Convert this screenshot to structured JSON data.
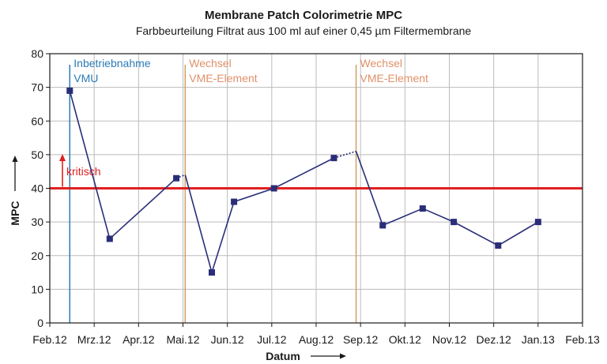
{
  "chart_data": {
    "type": "line",
    "title": "Membrane Patch Colorimetrie MPC",
    "subtitle": "Farbbeurteilung Filtrat aus 100 ml auf einer 0,45 µm Filtermembrane",
    "xlabel": "Datum",
    "ylabel": "MPC",
    "ylim": [
      0,
      80
    ],
    "yticks": [
      "0",
      "10",
      "20",
      "30",
      "40",
      "50",
      "60",
      "70",
      "80"
    ],
    "xticks": [
      "Feb.12",
      "Mrz.12",
      "Apr.12",
      "Mai.12",
      "Jun.12",
      "Jul.12",
      "Aug.12",
      "Sep.12",
      "Okt.12",
      "Nov.12",
      "Dez.12",
      "Jan.13",
      "Feb.13"
    ],
    "grid": true,
    "series": [
      {
        "values": [
          {
            "x": 0.45,
            "y": 69
          },
          {
            "x": 1.35,
            "y": 25
          },
          {
            "x": 2.85,
            "y": 43
          },
          {
            "x": 3.65,
            "y": 15
          },
          {
            "x": 4.15,
            "y": 36
          },
          {
            "x": 5.05,
            "y": 40
          },
          {
            "x": 6.4,
            "y": 49
          },
          {
            "x": 7.5,
            "y": 29
          },
          {
            "x": 8.4,
            "y": 34
          },
          {
            "x": 9.1,
            "y": 30
          },
          {
            "x": 10.1,
            "y": 23
          },
          {
            "x": 11.0,
            "y": 30
          }
        ]
      }
    ],
    "gaps": [
      {
        "from": {
          "x": 2.85,
          "y": 43
        },
        "to": {
          "x": 3.05,
          "y": 44
        }
      },
      {
        "from": {
          "x": 6.4,
          "y": 49
        },
        "to": {
          "x": 6.9,
          "y": 51
        }
      }
    ],
    "threshold": {
      "y": 40,
      "label": "kritisch",
      "color": "#e02020"
    },
    "events": [
      {
        "x": 0.45,
        "lines": [
          "Inbetriebnahme",
          "VMU"
        ],
        "color": "#2b7bb5"
      },
      {
        "x": 3.05,
        "lines": [
          "Wechsel",
          "VME-Element"
        ],
        "color": "#d2a060"
      },
      {
        "x": 6.9,
        "lines": [
          "Wechsel",
          "VME-Element"
        ],
        "color": "#d2a060"
      }
    ],
    "colors": {
      "series": "#2a2d78",
      "grid": "#bbbbbb",
      "axis": "#1a1a1a",
      "event_text_orange": "#e0906a"
    }
  }
}
